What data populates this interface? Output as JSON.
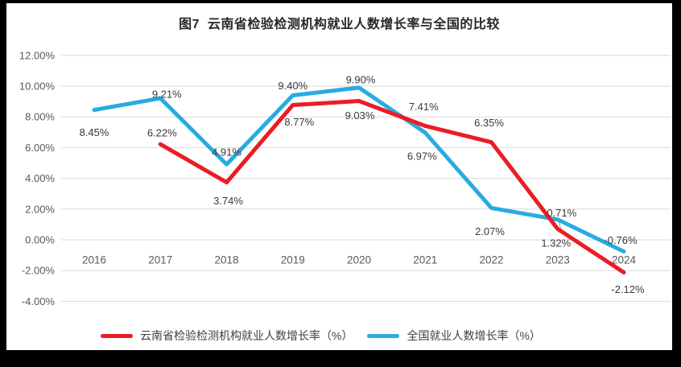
{
  "colors": {
    "frame": "#000000",
    "background": "#ffffff",
    "grid": "#d9d9d9",
    "axis_text": "#595959",
    "data_label": "#3a3a3a",
    "leader_line": "#a6a6a6",
    "yunnan_red": "#ec1c24",
    "national_blue": "#29abe2"
  },
  "chart_data": {
    "type": "line",
    "title": "图7  云南省检验检测机构就业人数增长率与全国的比较",
    "x": [
      "2016",
      "2017",
      "2018",
      "2019",
      "2020",
      "2021",
      "2022",
      "2023",
      "2024"
    ],
    "xlabel": "",
    "ylabel": "",
    "ylim": [
      -4,
      12
    ],
    "grid": true,
    "legend_position": "bottom",
    "ytick_values": [
      12,
      10,
      8,
      6,
      4,
      2,
      0,
      -2,
      -4
    ],
    "ytick_labels": [
      "12.00%",
      "10.00%",
      "8.00%",
      "6.00%",
      "4.00%",
      "2.00%",
      "0.00%",
      "-2.00%",
      "-4.00%"
    ],
    "series": [
      {
        "name": "云南省检验检测机构就业人数增长率（%）",
        "color": "#ec1c24",
        "values": [
          null,
          6.22,
          3.74,
          8.77,
          9.03,
          7.41,
          6.35,
          0.71,
          -2.12
        ],
        "labels": [
          "",
          "6.22%",
          "3.74%",
          "8.77%",
          "9.03%",
          "7.41%",
          "6.35%",
          "0.71%",
          "-2.12%"
        ],
        "label_offsets": [
          [
            0,
            0
          ],
          [
            2,
            -14
          ],
          [
            2,
            23
          ],
          [
            8,
            21
          ],
          [
            1,
            18
          ],
          [
            -2,
            -24
          ],
          [
            -3,
            -24
          ],
          [
            5,
            -20
          ],
          [
            5,
            21
          ]
        ]
      },
      {
        "name": "全国就业人数增长率（%）",
        "color": "#29abe2",
        "values": [
          8.45,
          9.21,
          4.91,
          9.4,
          9.9,
          6.97,
          2.07,
          1.32,
          -0.76
        ],
        "labels": [
          "8.45%",
          "9.21%",
          "4.91%",
          "9.40%",
          "9.90%",
          "6.97%",
          "2.07%",
          "1.32%",
          "-0.76%"
        ],
        "label_offsets": [
          [
            0,
            28
          ],
          [
            8,
            -5
          ],
          [
            0,
            -15
          ],
          [
            0,
            -12
          ],
          [
            2,
            -10
          ],
          [
            -4,
            29
          ],
          [
            -2,
            29
          ],
          [
            -2,
            29
          ],
          [
            -4,
            -14
          ]
        ]
      }
    ],
    "label_leader": {
      "series_index": 0,
      "point_index": 7
    }
  }
}
